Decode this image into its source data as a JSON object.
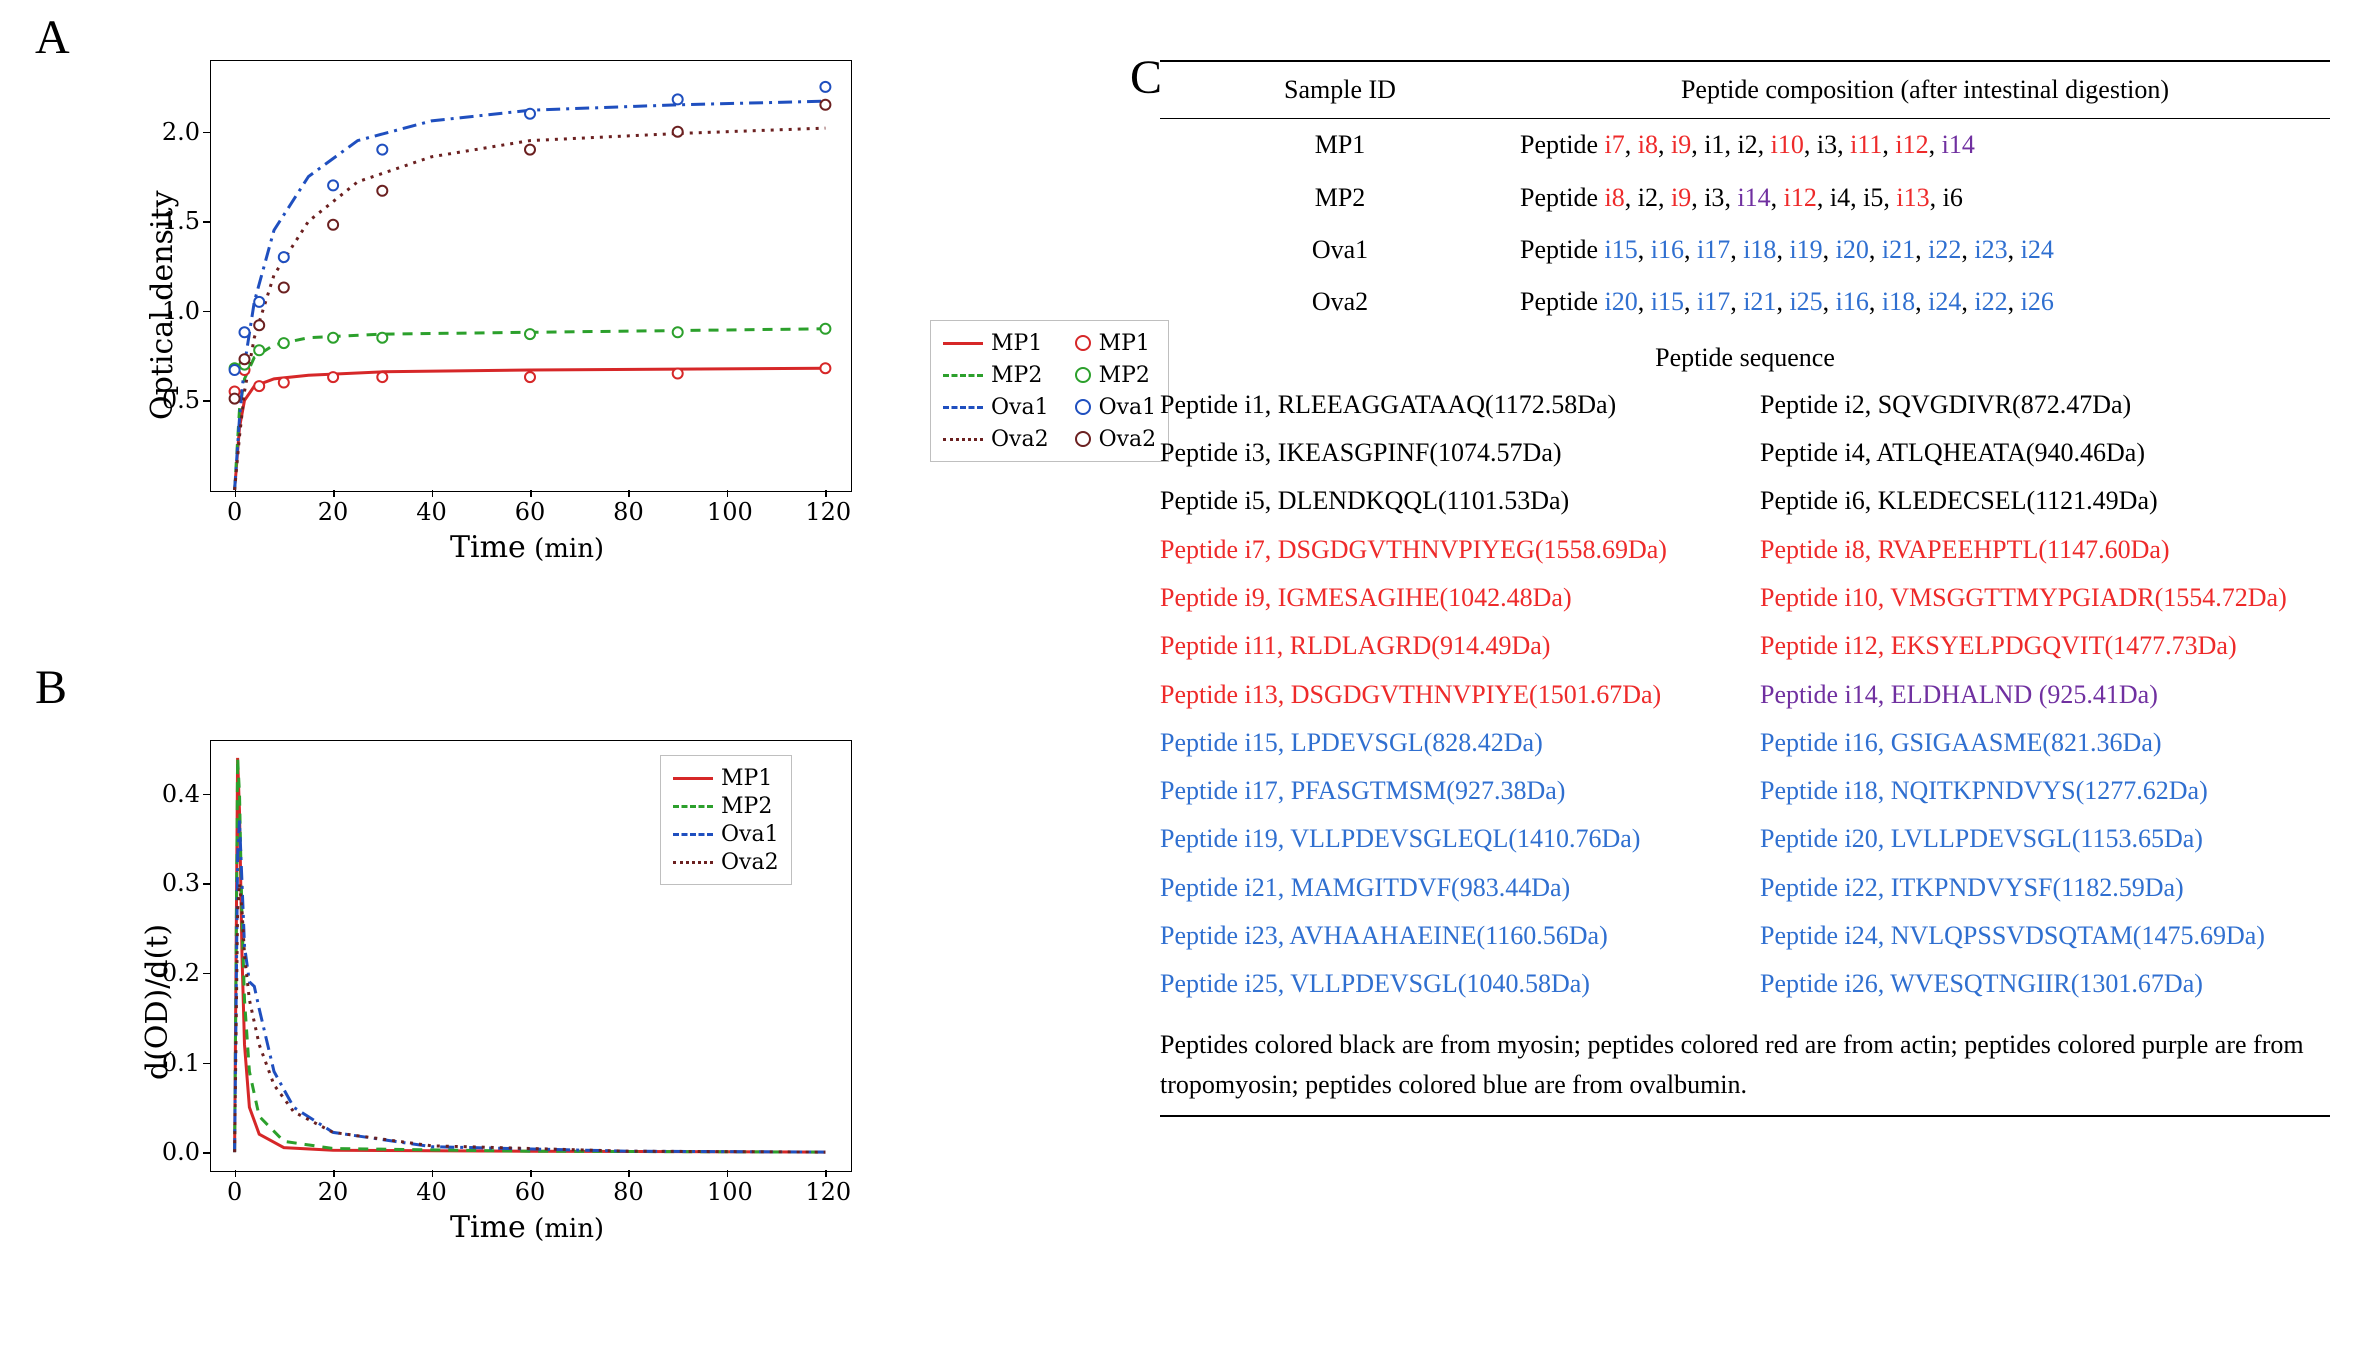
{
  "panel_labels": {
    "A": "A",
    "B": "B",
    "C": "C"
  },
  "colors": {
    "MP1": "#d62728",
    "MP2": "#2ca02c",
    "Ova1": "#1f4fbf",
    "Ova2": "#6b2020",
    "axis": "#000000",
    "legend_border": "#bfbfbf",
    "bg": "#ffffff",
    "black": "#000000",
    "red": "#ee2a2a",
    "purple": "#7030a0",
    "blue": "#2f6fd0"
  },
  "chartA": {
    "type": "line+scatter",
    "xlabel": "Time",
    "xunit": "(min)",
    "ylabel": "Optical density",
    "xlim": [
      -5,
      125
    ],
    "ylim": [
      0,
      2.4
    ],
    "xticks": [
      0,
      20,
      40,
      60,
      80,
      100,
      120
    ],
    "yticks": [
      0.5,
      1.0,
      1.5,
      2.0
    ],
    "series": {
      "MP1": {
        "dash": "solid",
        "marker": true
      },
      "MP2": {
        "dash": "dashed",
        "marker": true
      },
      "Ova1": {
        "dash": "dashdot",
        "marker": true
      },
      "Ova2": {
        "dash": "dotted",
        "marker": true
      }
    },
    "points": {
      "MP1": [
        [
          0,
          0.55
        ],
        [
          2,
          0.67
        ],
        [
          5,
          0.58
        ],
        [
          10,
          0.6
        ],
        [
          20,
          0.63
        ],
        [
          30,
          0.63
        ],
        [
          60,
          0.63
        ],
        [
          90,
          0.65
        ],
        [
          120,
          0.68
        ]
      ],
      "MP2": [
        [
          0,
          0.68
        ],
        [
          2,
          0.7
        ],
        [
          5,
          0.78
        ],
        [
          10,
          0.82
        ],
        [
          20,
          0.85
        ],
        [
          30,
          0.85
        ],
        [
          60,
          0.87
        ],
        [
          90,
          0.88
        ],
        [
          120,
          0.9
        ]
      ],
      "Ova1": [
        [
          0,
          0.67
        ],
        [
          2,
          0.88
        ],
        [
          5,
          1.05
        ],
        [
          10,
          1.3
        ],
        [
          20,
          1.7
        ],
        [
          30,
          1.9
        ],
        [
          60,
          2.1
        ],
        [
          90,
          2.18
        ],
        [
          120,
          2.25
        ]
      ],
      "Ova2": [
        [
          0,
          0.51
        ],
        [
          2,
          0.73
        ],
        [
          5,
          0.92
        ],
        [
          10,
          1.13
        ],
        [
          20,
          1.48
        ],
        [
          30,
          1.67
        ],
        [
          60,
          1.9
        ],
        [
          90,
          2.0
        ],
        [
          120,
          2.15
        ]
      ]
    },
    "fit_lines": {
      "MP1": [
        [
          0,
          0.0
        ],
        [
          1,
          0.35
        ],
        [
          2,
          0.5
        ],
        [
          4,
          0.58
        ],
        [
          8,
          0.62
        ],
        [
          15,
          0.64
        ],
        [
          30,
          0.66
        ],
        [
          60,
          0.67
        ],
        [
          120,
          0.68
        ]
      ],
      "MP2": [
        [
          0,
          0.0
        ],
        [
          1,
          0.45
        ],
        [
          2,
          0.62
        ],
        [
          4,
          0.74
        ],
        [
          8,
          0.81
        ],
        [
          15,
          0.85
        ],
        [
          30,
          0.87
        ],
        [
          60,
          0.88
        ],
        [
          120,
          0.9
        ]
      ],
      "Ova1": [
        [
          0,
          0.0
        ],
        [
          1,
          0.4
        ],
        [
          2,
          0.7
        ],
        [
          4,
          1.05
        ],
        [
          8,
          1.45
        ],
        [
          15,
          1.75
        ],
        [
          25,
          1.95
        ],
        [
          40,
          2.06
        ],
        [
          60,
          2.12
        ],
        [
          90,
          2.15
        ],
        [
          120,
          2.17
        ]
      ],
      "Ova2": [
        [
          0,
          0.0
        ],
        [
          1,
          0.3
        ],
        [
          2,
          0.55
        ],
        [
          4,
          0.85
        ],
        [
          8,
          1.2
        ],
        [
          15,
          1.5
        ],
        [
          25,
          1.72
        ],
        [
          40,
          1.86
        ],
        [
          60,
          1.95
        ],
        [
          90,
          1.99
        ],
        [
          120,
          2.02
        ]
      ]
    }
  },
  "chartB": {
    "type": "line",
    "xlabel": "Time",
    "xunit": "(min)",
    "ylabel": "d(OD)/d(t)",
    "xlim": [
      -5,
      125
    ],
    "ylim": [
      -0.02,
      0.46
    ],
    "xticks": [
      0,
      20,
      40,
      60,
      80,
      100,
      120
    ],
    "yticks": [
      0.0,
      0.1,
      0.2,
      0.3,
      0.4
    ],
    "series": {
      "MP1": {
        "dash": "solid"
      },
      "MP2": {
        "dash": "dashed"
      },
      "Ova1": {
        "dash": "dashdot"
      },
      "Ova2": {
        "dash": "dotted"
      }
    },
    "lines": {
      "MP1": [
        [
          0,
          0.0
        ],
        [
          0.6,
          0.44
        ],
        [
          1.0,
          0.38
        ],
        [
          1.5,
          0.22
        ],
        [
          2,
          0.12
        ],
        [
          3,
          0.05
        ],
        [
          5,
          0.02
        ],
        [
          10,
          0.005
        ],
        [
          20,
          0.002
        ],
        [
          60,
          0.001
        ],
        [
          120,
          0.0
        ]
      ],
      "MP2": [
        [
          0,
          0.0
        ],
        [
          0.6,
          0.44
        ],
        [
          1.0,
          0.4
        ],
        [
          1.5,
          0.26
        ],
        [
          2,
          0.17
        ],
        [
          3,
          0.09
        ],
        [
          5,
          0.04
        ],
        [
          10,
          0.012
        ],
        [
          20,
          0.004
        ],
        [
          60,
          0.001
        ],
        [
          120,
          0.0
        ]
      ],
      "Ova1": [
        [
          0,
          0.0
        ],
        [
          0.6,
          0.33
        ],
        [
          1.0,
          0.37
        ],
        [
          1.5,
          0.3
        ],
        [
          2,
          0.23
        ],
        [
          3,
          0.19
        ],
        [
          4,
          0.185
        ],
        [
          5,
          0.16
        ],
        [
          8,
          0.09
        ],
        [
          12,
          0.05
        ],
        [
          20,
          0.022
        ],
        [
          40,
          0.006
        ],
        [
          80,
          0.001
        ],
        [
          120,
          0.0
        ]
      ],
      "Ova2": [
        [
          0,
          0.0
        ],
        [
          0.6,
          0.27
        ],
        [
          1.0,
          0.3
        ],
        [
          1.5,
          0.27
        ],
        [
          2,
          0.22
        ],
        [
          3,
          0.17
        ],
        [
          5,
          0.12
        ],
        [
          8,
          0.075
        ],
        [
          12,
          0.045
        ],
        [
          20,
          0.022
        ],
        [
          40,
          0.007
        ],
        [
          80,
          0.001
        ],
        [
          120,
          0.0
        ]
      ]
    }
  },
  "legendA_ext": {
    "left_col": [
      "MP1",
      "MP2",
      "Ova1",
      "Ova2"
    ],
    "right_col": [
      "MP1",
      "MP2",
      "Ova1",
      "Ova2"
    ]
  },
  "panelC": {
    "header": {
      "col1": "Sample ID",
      "col2": "Peptide composition (after intestinal digestion)"
    },
    "rows": [
      {
        "id": "MP1",
        "tokens": [
          {
            "t": "Peptide ",
            "c": "black"
          },
          {
            "t": "i7",
            "c": "red"
          },
          {
            "t": ", ",
            "c": "black"
          },
          {
            "t": "i8",
            "c": "red"
          },
          {
            "t": ", ",
            "c": "black"
          },
          {
            "t": "i9",
            "c": "red"
          },
          {
            "t": ", ",
            "c": "black"
          },
          {
            "t": "i1",
            "c": "black"
          },
          {
            "t": ", ",
            "c": "black"
          },
          {
            "t": "i2",
            "c": "black"
          },
          {
            "t": ", ",
            "c": "black"
          },
          {
            "t": "i10",
            "c": "red"
          },
          {
            "t": ", ",
            "c": "black"
          },
          {
            "t": "i3",
            "c": "black"
          },
          {
            "t": ", ",
            "c": "black"
          },
          {
            "t": "i11",
            "c": "red"
          },
          {
            "t": ", ",
            "c": "black"
          },
          {
            "t": "i12",
            "c": "red"
          },
          {
            "t": ", ",
            "c": "black"
          },
          {
            "t": "i14",
            "c": "purple"
          }
        ]
      },
      {
        "id": "MP2",
        "tokens": [
          {
            "t": "Peptide ",
            "c": "black"
          },
          {
            "t": "i8",
            "c": "red"
          },
          {
            "t": ", ",
            "c": "black"
          },
          {
            "t": "i2",
            "c": "black"
          },
          {
            "t": ", ",
            "c": "black"
          },
          {
            "t": "i9",
            "c": "red"
          },
          {
            "t": ", ",
            "c": "black"
          },
          {
            "t": "i3",
            "c": "black"
          },
          {
            "t": ", ",
            "c": "black"
          },
          {
            "t": "i14",
            "c": "purple"
          },
          {
            "t": ", ",
            "c": "black"
          },
          {
            "t": "i12",
            "c": "red"
          },
          {
            "t": ", ",
            "c": "black"
          },
          {
            "t": "i4",
            "c": "black"
          },
          {
            "t": ", ",
            "c": "black"
          },
          {
            "t": "i5",
            "c": "black"
          },
          {
            "t": ", ",
            "c": "black"
          },
          {
            "t": "i13",
            "c": "red"
          },
          {
            "t": ", ",
            "c": "black"
          },
          {
            "t": "i6",
            "c": "black"
          }
        ]
      },
      {
        "id": "Ova1",
        "tokens": [
          {
            "t": "Peptide ",
            "c": "black"
          },
          {
            "t": "i15",
            "c": "blue"
          },
          {
            "t": ", ",
            "c": "black"
          },
          {
            "t": "i16",
            "c": "blue"
          },
          {
            "t": ", ",
            "c": "black"
          },
          {
            "t": "i17",
            "c": "blue"
          },
          {
            "t": ", ",
            "c": "black"
          },
          {
            "t": "i18",
            "c": "blue"
          },
          {
            "t": ", ",
            "c": "black"
          },
          {
            "t": "i19",
            "c": "blue"
          },
          {
            "t": ", ",
            "c": "black"
          },
          {
            "t": "i20",
            "c": "blue"
          },
          {
            "t": ", ",
            "c": "black"
          },
          {
            "t": "i21",
            "c": "blue"
          },
          {
            "t": ", ",
            "c": "black"
          },
          {
            "t": "i22",
            "c": "blue"
          },
          {
            "t": ", ",
            "c": "black"
          },
          {
            "t": "i23",
            "c": "blue"
          },
          {
            "t": ", ",
            "c": "black"
          },
          {
            "t": "i24",
            "c": "blue"
          }
        ]
      },
      {
        "id": "Ova2",
        "tokens": [
          {
            "t": "Peptide ",
            "c": "black"
          },
          {
            "t": "i20",
            "c": "blue"
          },
          {
            "t": ", ",
            "c": "black"
          },
          {
            "t": "i15",
            "c": "blue"
          },
          {
            "t": ", ",
            "c": "black"
          },
          {
            "t": "i17",
            "c": "blue"
          },
          {
            "t": ", ",
            "c": "black"
          },
          {
            "t": "i21",
            "c": "blue"
          },
          {
            "t": ", ",
            "c": "black"
          },
          {
            "t": "i25",
            "c": "blue"
          },
          {
            "t": ", ",
            "c": "black"
          },
          {
            "t": "i16",
            "c": "blue"
          },
          {
            "t": ", ",
            "c": "black"
          },
          {
            "t": "i18",
            "c": "blue"
          },
          {
            "t": ", ",
            "c": "black"
          },
          {
            "t": "i24",
            "c": "blue"
          },
          {
            "t": ", ",
            "c": "black"
          },
          {
            "t": "i22",
            "c": "blue"
          },
          {
            "t": ", ",
            "c": "black"
          },
          {
            "t": "i26",
            "c": "blue"
          }
        ]
      }
    ],
    "seq_title": "Peptide sequence",
    "sequences": [
      {
        "t": "Peptide i1, RLEEAGGATAAQ(1172.58Da)",
        "c": "black"
      },
      {
        "t": "Peptide i2, SQVGDIVR(872.47Da)",
        "c": "black"
      },
      {
        "t": "Peptide i3, IKEASGPINF(1074.57Da)",
        "c": "black"
      },
      {
        "t": "Peptide i4, ATLQHEATA(940.46Da)",
        "c": "black"
      },
      {
        "t": "Peptide i5, DLENDKQQL(1101.53Da)",
        "c": "black"
      },
      {
        "t": "Peptide i6, KLEDECSEL(1121.49Da)",
        "c": "black"
      },
      {
        "t": "Peptide i7, DSGDGVTHNVPIYEG(1558.69Da)",
        "c": "red"
      },
      {
        "t": "Peptide i8, RVAPEEHPTL(1147.60Da)",
        "c": "red"
      },
      {
        "t": "Peptide i9, IGMESAGIHE(1042.48Da)",
        "c": "red"
      },
      {
        "t": "Peptide i10, VMSGGTTMYPGIADR(1554.72Da)",
        "c": "red"
      },
      {
        "t": "Peptide i11, RLDLAGRD(914.49Da)",
        "c": "red"
      },
      {
        "t": "Peptide i12, EKSYELPDGQVIT(1477.73Da)",
        "c": "red"
      },
      {
        "t": "Peptide i13, DSGDGVTHNVPIYE(1501.67Da)",
        "c": "red"
      },
      {
        "t": "Peptide i14, ELDHALND (925.41Da)",
        "c": "purple"
      },
      {
        "t": "Peptide i15, LPDEVSGL(828.42Da)",
        "c": "blue"
      },
      {
        "t": "Peptide i16, GSIGAASME(821.36Da)",
        "c": "blue"
      },
      {
        "t": "Peptide i17, PFASGTMSM(927.38Da)",
        "c": "blue"
      },
      {
        "t": "Peptide i18, NQITKPNDVYS(1277.62Da)",
        "c": "blue"
      },
      {
        "t": "Peptide i19, VLLPDEVSGLEQL(1410.76Da)",
        "c": "blue"
      },
      {
        "t": "Peptide i20, LVLLPDEVSGL(1153.65Da)",
        "c": "blue"
      },
      {
        "t": "Peptide i21, MAMGITDVF(983.44Da)",
        "c": "blue"
      },
      {
        "t": "Peptide i22, ITKPNDVYSF(1182.59Da)",
        "c": "blue"
      },
      {
        "t": "Peptide i23, AVHAAHAEINE(1160.56Da)",
        "c": "blue"
      },
      {
        "t": "Peptide i24, NVLQPSSVDSQTAM(1475.69Da)",
        "c": "blue"
      },
      {
        "t": "Peptide i25, VLLPDEVSGL(1040.58Da)",
        "c": "blue"
      },
      {
        "t": "Peptide i26, WVESQTNGIIR(1301.67Da)",
        "c": "blue"
      }
    ],
    "footnote": "Peptides colored black are from myosin; peptides colored red are from actin; peptides colored purple are from tropomyosin; peptides colored blue are from ovalbumin."
  }
}
